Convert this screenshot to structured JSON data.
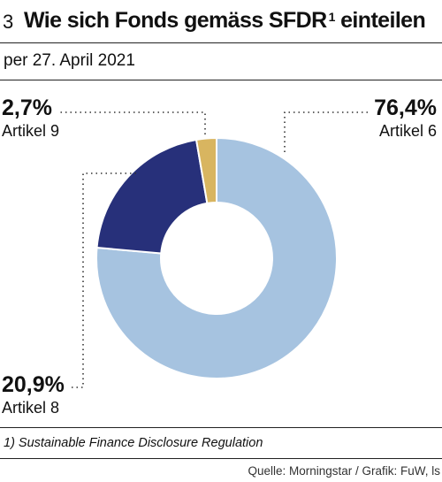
{
  "header": {
    "figure_number": "3",
    "title": "Wie sich Fonds gemäss SFDR",
    "title_sup": "1",
    "title_tail": " einteilen"
  },
  "subtitle": "per 27. April 2021",
  "chart_data": {
    "type": "pie",
    "donut": true,
    "unit": "%",
    "slices": [
      {
        "name": "Artikel 6",
        "value": 76.4,
        "label": "76,4%",
        "color": "#a6c3e0"
      },
      {
        "name": "Artikel 8",
        "value": 20.9,
        "label": "20,9%",
        "color": "#27307a"
      },
      {
        "name": "Artikel 9",
        "value": 2.7,
        "label": "2,7%",
        "color": "#d8b560"
      }
    ]
  },
  "footnote": "1) Sustainable Finance Disclosure Regulation",
  "source": "Quelle: Morningstar / Grafik: FuW, ls"
}
